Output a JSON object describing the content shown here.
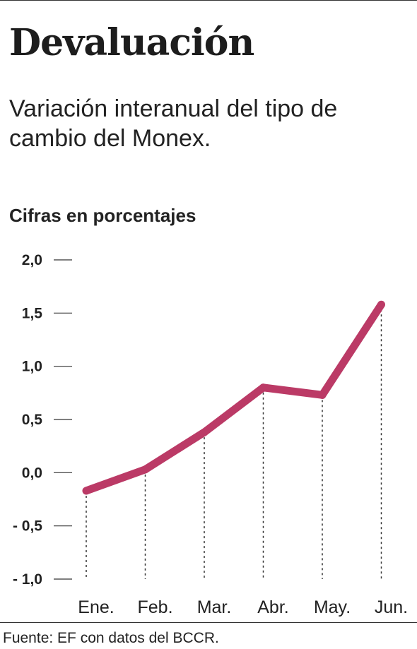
{
  "title": "Devaluación",
  "subtitle": "Variación interanual del tipo de cambio del Monex.",
  "units_label": "Cifras en porcentajes",
  "source": "Fuente: EF con datos del BCCR.",
  "chart_data": {
    "type": "line",
    "categories": [
      "Ene.",
      "Feb.",
      "Mar.",
      "Abr.",
      "May.",
      "Jun."
    ],
    "series": [
      {
        "values": [
          -0.17,
          0.03,
          0.38,
          0.8,
          0.73,
          1.58
        ]
      }
    ],
    "y_ticks": [
      "2,0",
      "1,5",
      "1,0",
      "0,5",
      "0,0",
      "- 0,5",
      "- 1,0"
    ],
    "y_tick_values": [
      2.0,
      1.5,
      1.0,
      0.5,
      0.0,
      -0.5,
      -1.0
    ],
    "ylim": [
      -1.0,
      2.0
    ],
    "grid": false,
    "colors": {
      "line": "#bb3a66",
      "text": "#222222",
      "axis": "#333333"
    }
  }
}
